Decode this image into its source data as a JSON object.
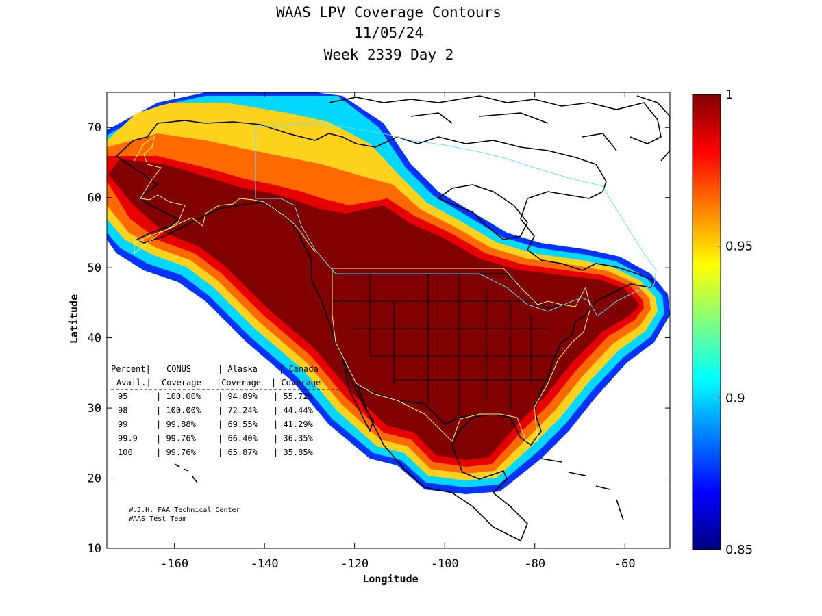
{
  "title": {
    "line1": "WAAS LPV Coverage Contours",
    "line2": "11/05/24",
    "line3": "Week 2339 Day 2"
  },
  "axes": {
    "xlabel": "Longitude",
    "ylabel": "Latitude",
    "x_ticks": [
      -160,
      -140,
      -120,
      -100,
      -80,
      -60
    ],
    "y_ticks": [
      10,
      20,
      30,
      40,
      50,
      60,
      70
    ],
    "xlim": [
      -175,
      -50
    ],
    "ylim": [
      10,
      75
    ]
  },
  "colorbar": {
    "ticks": [
      "1",
      "0.95",
      "0.9",
      "0.85"
    ],
    "range": [
      0.85,
      1.0
    ]
  },
  "coverage_table": {
    "header1": [
      "Percent|",
      "CONUS",
      "| Alaska",
      "| Canada"
    ],
    "header2": [
      "Avail.|",
      "Coverage",
      "|Coverage",
      "| Coverage"
    ],
    "rows": [
      {
        "pct": "95",
        "conus": "100.00%",
        "alaska": "94.89%",
        "canada": "55.72%"
      },
      {
        "pct": "98",
        "conus": "100.00%",
        "alaska": "72.24%",
        "canada": "44.44%"
      },
      {
        "pct": "99",
        "conus": "99.88%",
        "alaska": "69.55%",
        "canada": "41.29%"
      },
      {
        "pct": "99.9",
        "conus": "99.76%",
        "alaska": "66.40%",
        "canada": "36.35%"
      },
      {
        "pct": "100",
        "conus": "99.76%",
        "alaska": "65.87%",
        "canada": "35.85%"
      }
    ]
  },
  "credit": {
    "line1": "W.J.H. FAA Technical Center",
    "line2": "WAAS Test Team"
  },
  "colors": {
    "max": "#800000",
    "red": "#ff0000",
    "orange": "#ff8000",
    "yellow": "#ffff00",
    "cyan": "#00ffff",
    "blue": "#0000ff",
    "min": "#000080"
  }
}
